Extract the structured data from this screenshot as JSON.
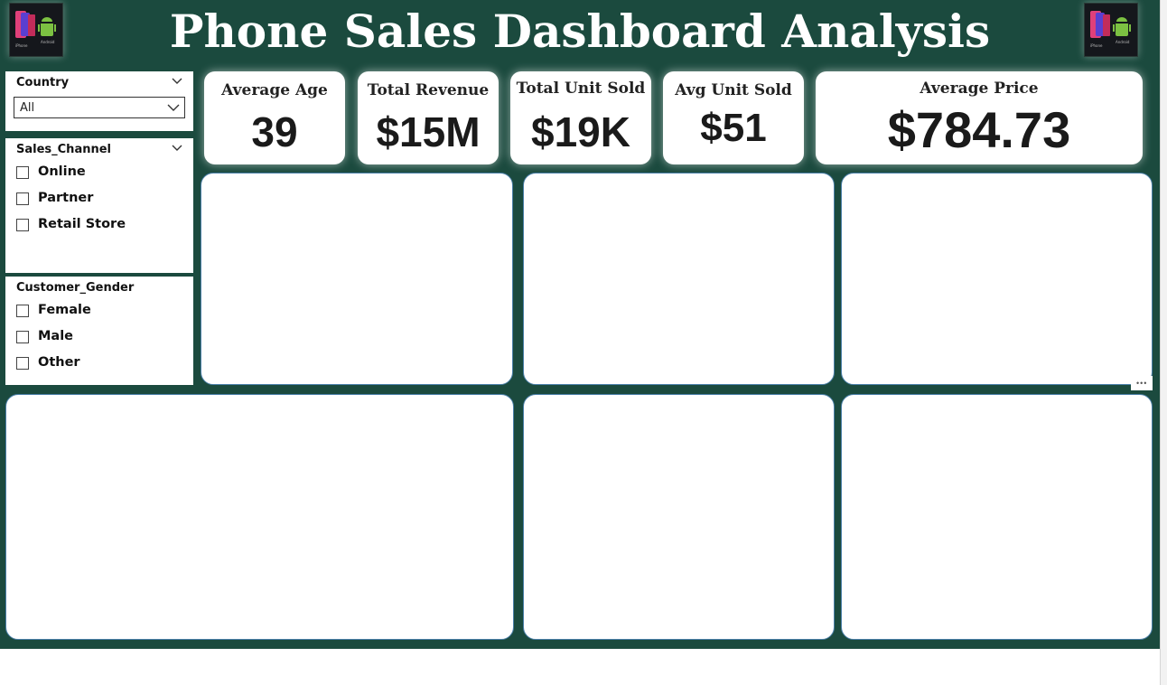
{
  "header": {
    "title": "Phone Sales Dashboard Analysis",
    "left_logo": {
      "icon": "phone-brands-logo",
      "caption_left": "iPhone",
      "caption_right": "Android"
    },
    "right_logo": {
      "icon": "phone-brands-logo",
      "caption_left": "iPhone",
      "caption_right": "Android"
    }
  },
  "filters": {
    "country": {
      "title": "Country",
      "selected": "All"
    },
    "sales_channel": {
      "title": "Sales_Channel",
      "options": [
        "Online",
        "Partner",
        "Retail Store"
      ]
    },
    "customer_gender": {
      "title": "Customer_Gender",
      "options": [
        "Female",
        "Male",
        "Other"
      ]
    }
  },
  "kpis": [
    {
      "label": "Average Age",
      "value": "39"
    },
    {
      "label": "Total Revenue",
      "value": "$15M"
    },
    {
      "label": "Total Unit Sold",
      "value": "$19K"
    },
    {
      "label": "Avg Unit Sold",
      "value": "$51"
    },
    {
      "label": "Average Price",
      "value": "$784.73"
    }
  ],
  "panels": {
    "more_options_icon": "more-options-icon"
  },
  "colors": {
    "background": "#1b4a3e",
    "card": "#ffffff",
    "panel_border": "#4a7fa8",
    "title_text": "#ffffff"
  }
}
